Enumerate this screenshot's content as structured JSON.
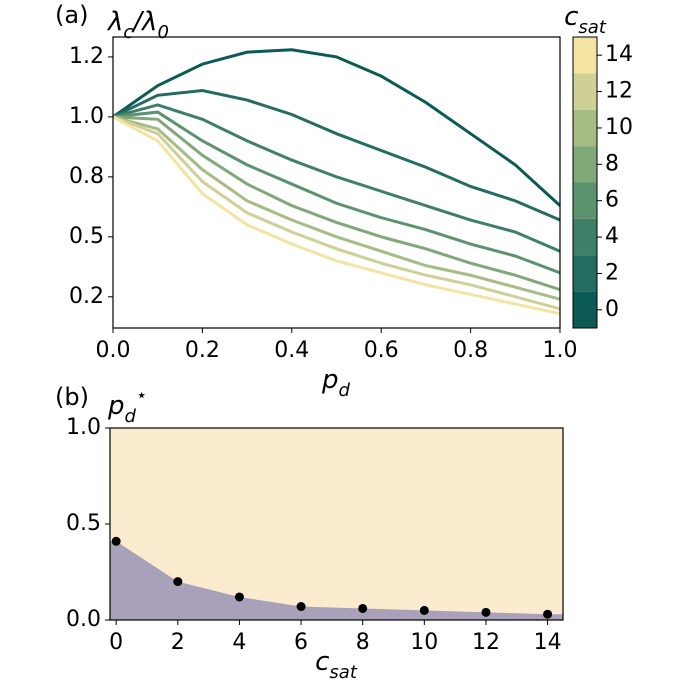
{
  "chart_data": [
    {
      "type": "line",
      "panel_label": "(a)",
      "ylabel": [
        {
          "text": "λ"
        },
        {
          "text": "c",
          "sub": true
        },
        {
          "text": "/λ"
        },
        {
          "text": "0",
          "sub": true
        }
      ],
      "xlabel": [
        {
          "text": "p"
        },
        {
          "text": "d",
          "sub": true
        }
      ],
      "x": [
        0,
        0.1,
        0.2,
        0.3,
        0.4,
        0.5,
        0.6,
        0.7,
        0.8,
        0.9,
        1.0
      ],
      "xlim": [
        0,
        1
      ],
      "ylim": [
        0.12,
        1.333
      ],
      "xticks": [
        {
          "value": 0,
          "label": "0.0"
        },
        0.2,
        0.4,
        0.6,
        0.8,
        {
          "value": 1,
          "label": "1.0"
        }
      ],
      "yticks": [
        {
          "value": 0.25,
          "label": "0.2"
        },
        0.5,
        {
          "value": 0.75,
          "label": "0.8"
        },
        {
          "value": 1,
          "label": "1.0"
        },
        {
          "value": 1.25,
          "label": "1.2"
        }
      ],
      "series": [
        {
          "color": "#0b5a55",
          "values": [
            1.0,
            1.13,
            1.22,
            1.27,
            1.28,
            1.25,
            1.17,
            1.06,
            0.93,
            0.8,
            0.63
          ]
        },
        {
          "color": "#246b60",
          "values": [
            1.0,
            1.09,
            1.11,
            1.07,
            1.01,
            0.93,
            0.86,
            0.79,
            0.71,
            0.65,
            0.57
          ]
        },
        {
          "color": "#3d7f68",
          "values": [
            1.0,
            1.05,
            0.99,
            0.9,
            0.82,
            0.75,
            0.69,
            0.63,
            0.57,
            0.52,
            0.44
          ]
        },
        {
          "color": "#5c936f",
          "values": [
            1.0,
            1.02,
            0.9,
            0.8,
            0.72,
            0.64,
            0.58,
            0.53,
            0.47,
            0.42,
            0.35
          ]
        },
        {
          "color": "#80a878",
          "values": [
            1.0,
            0.99,
            0.84,
            0.72,
            0.63,
            0.56,
            0.5,
            0.45,
            0.39,
            0.34,
            0.28
          ]
        },
        {
          "color": "#a6bc85",
          "values": [
            1.0,
            0.95,
            0.78,
            0.65,
            0.57,
            0.5,
            0.44,
            0.38,
            0.34,
            0.29,
            0.24
          ]
        },
        {
          "color": "#cfd095",
          "values": [
            1.0,
            0.93,
            0.73,
            0.6,
            0.52,
            0.45,
            0.39,
            0.34,
            0.3,
            0.25,
            0.2
          ]
        },
        {
          "color": "#f3e4a3",
          "values": [
            1.0,
            0.9,
            0.68,
            0.55,
            0.47,
            0.4,
            0.35,
            0.3,
            0.26,
            0.22,
            0.18
          ]
        }
      ],
      "colorbar": {
        "label": [
          {
            "text": "c"
          },
          {
            "text": "sat",
            "sub": true
          }
        ],
        "lim": [
          -1,
          15
        ],
        "ticks": [
          0,
          2,
          4,
          6,
          8,
          10,
          12,
          14
        ]
      }
    },
    {
      "type": "scatter",
      "panel_label": "(b)",
      "ylabel": [
        {
          "text": "p"
        },
        {
          "text": "d",
          "sub": true
        },
        {
          "text": "⋆",
          "sup": true
        }
      ],
      "xlabel": [
        {
          "text": "c"
        },
        {
          "text": "sat",
          "sub": true
        }
      ],
      "x": [
        0,
        2,
        4,
        6,
        8,
        10,
        12,
        14
      ],
      "values": [
        0.41,
        0.2,
        0.12,
        0.07,
        0.06,
        0.05,
        0.04,
        0.03
      ],
      "color": "#000000",
      "fill_below": "#a9a1b9",
      "fill_above": "#fbecd0",
      "xlim": [
        -0.2,
        14.5
      ],
      "ylim": [
        0,
        1
      ],
      "xticks": [
        0,
        2,
        4,
        6,
        8,
        10,
        12,
        14
      ],
      "yticks": [
        {
          "value": 0,
          "label": "0.0"
        },
        0.5,
        {
          "value": 1,
          "label": "1.0"
        }
      ]
    }
  ]
}
